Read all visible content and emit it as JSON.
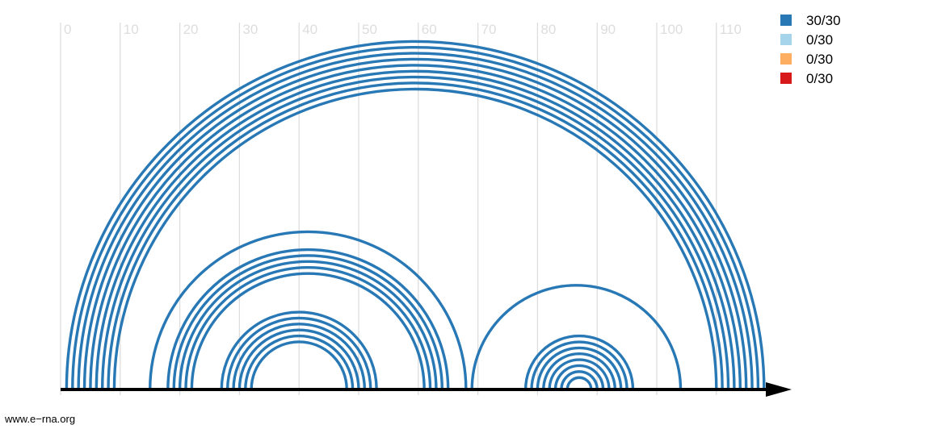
{
  "chart_data": {
    "type": "arc",
    "title": "",
    "xlabel": "",
    "ylabel": "",
    "xlim": [
      0,
      118
    ],
    "x_ticks": [
      0,
      10,
      20,
      30,
      40,
      50,
      60,
      70,
      80,
      90,
      100,
      110
    ],
    "grid": true,
    "legend_position": "top-right",
    "legend": [
      {
        "label": "30/30",
        "color": "#2878b5"
      },
      {
        "label": "0/30",
        "color": "#a6d4ea"
      },
      {
        "label": "0/30",
        "color": "#fdae61"
      },
      {
        "label": "0/30",
        "color": "#d7191c"
      }
    ],
    "arcs": [
      {
        "i": 1,
        "j": 118
      },
      {
        "i": 2,
        "j": 117
      },
      {
        "i": 3,
        "j": 116
      },
      {
        "i": 4,
        "j": 115
      },
      {
        "i": 5,
        "j": 114
      },
      {
        "i": 6,
        "j": 113
      },
      {
        "i": 7,
        "j": 112
      },
      {
        "i": 8,
        "j": 111
      },
      {
        "i": 9,
        "j": 110
      },
      {
        "i": 15,
        "j": 68
      },
      {
        "i": 18,
        "j": 65
      },
      {
        "i": 19,
        "j": 64
      },
      {
        "i": 20,
        "j": 63
      },
      {
        "i": 21,
        "j": 62
      },
      {
        "i": 22,
        "j": 61
      },
      {
        "i": 27,
        "j": 53
      },
      {
        "i": 28,
        "j": 52
      },
      {
        "i": 29,
        "j": 51
      },
      {
        "i": 30,
        "j": 50
      },
      {
        "i": 31,
        "j": 49
      },
      {
        "i": 32,
        "j": 48
      },
      {
        "i": 69,
        "j": 104
      },
      {
        "i": 78,
        "j": 96
      },
      {
        "i": 79,
        "j": 95
      },
      {
        "i": 80,
        "j": 94
      },
      {
        "i": 81,
        "j": 93
      },
      {
        "i": 82,
        "j": 92
      },
      {
        "i": 83,
        "j": 91
      },
      {
        "i": 84,
        "j": 90
      },
      {
        "i": 85,
        "j": 89
      }
    ],
    "arc_color": "#2878b5"
  },
  "footer": {
    "text": "www.e−rna.org"
  }
}
